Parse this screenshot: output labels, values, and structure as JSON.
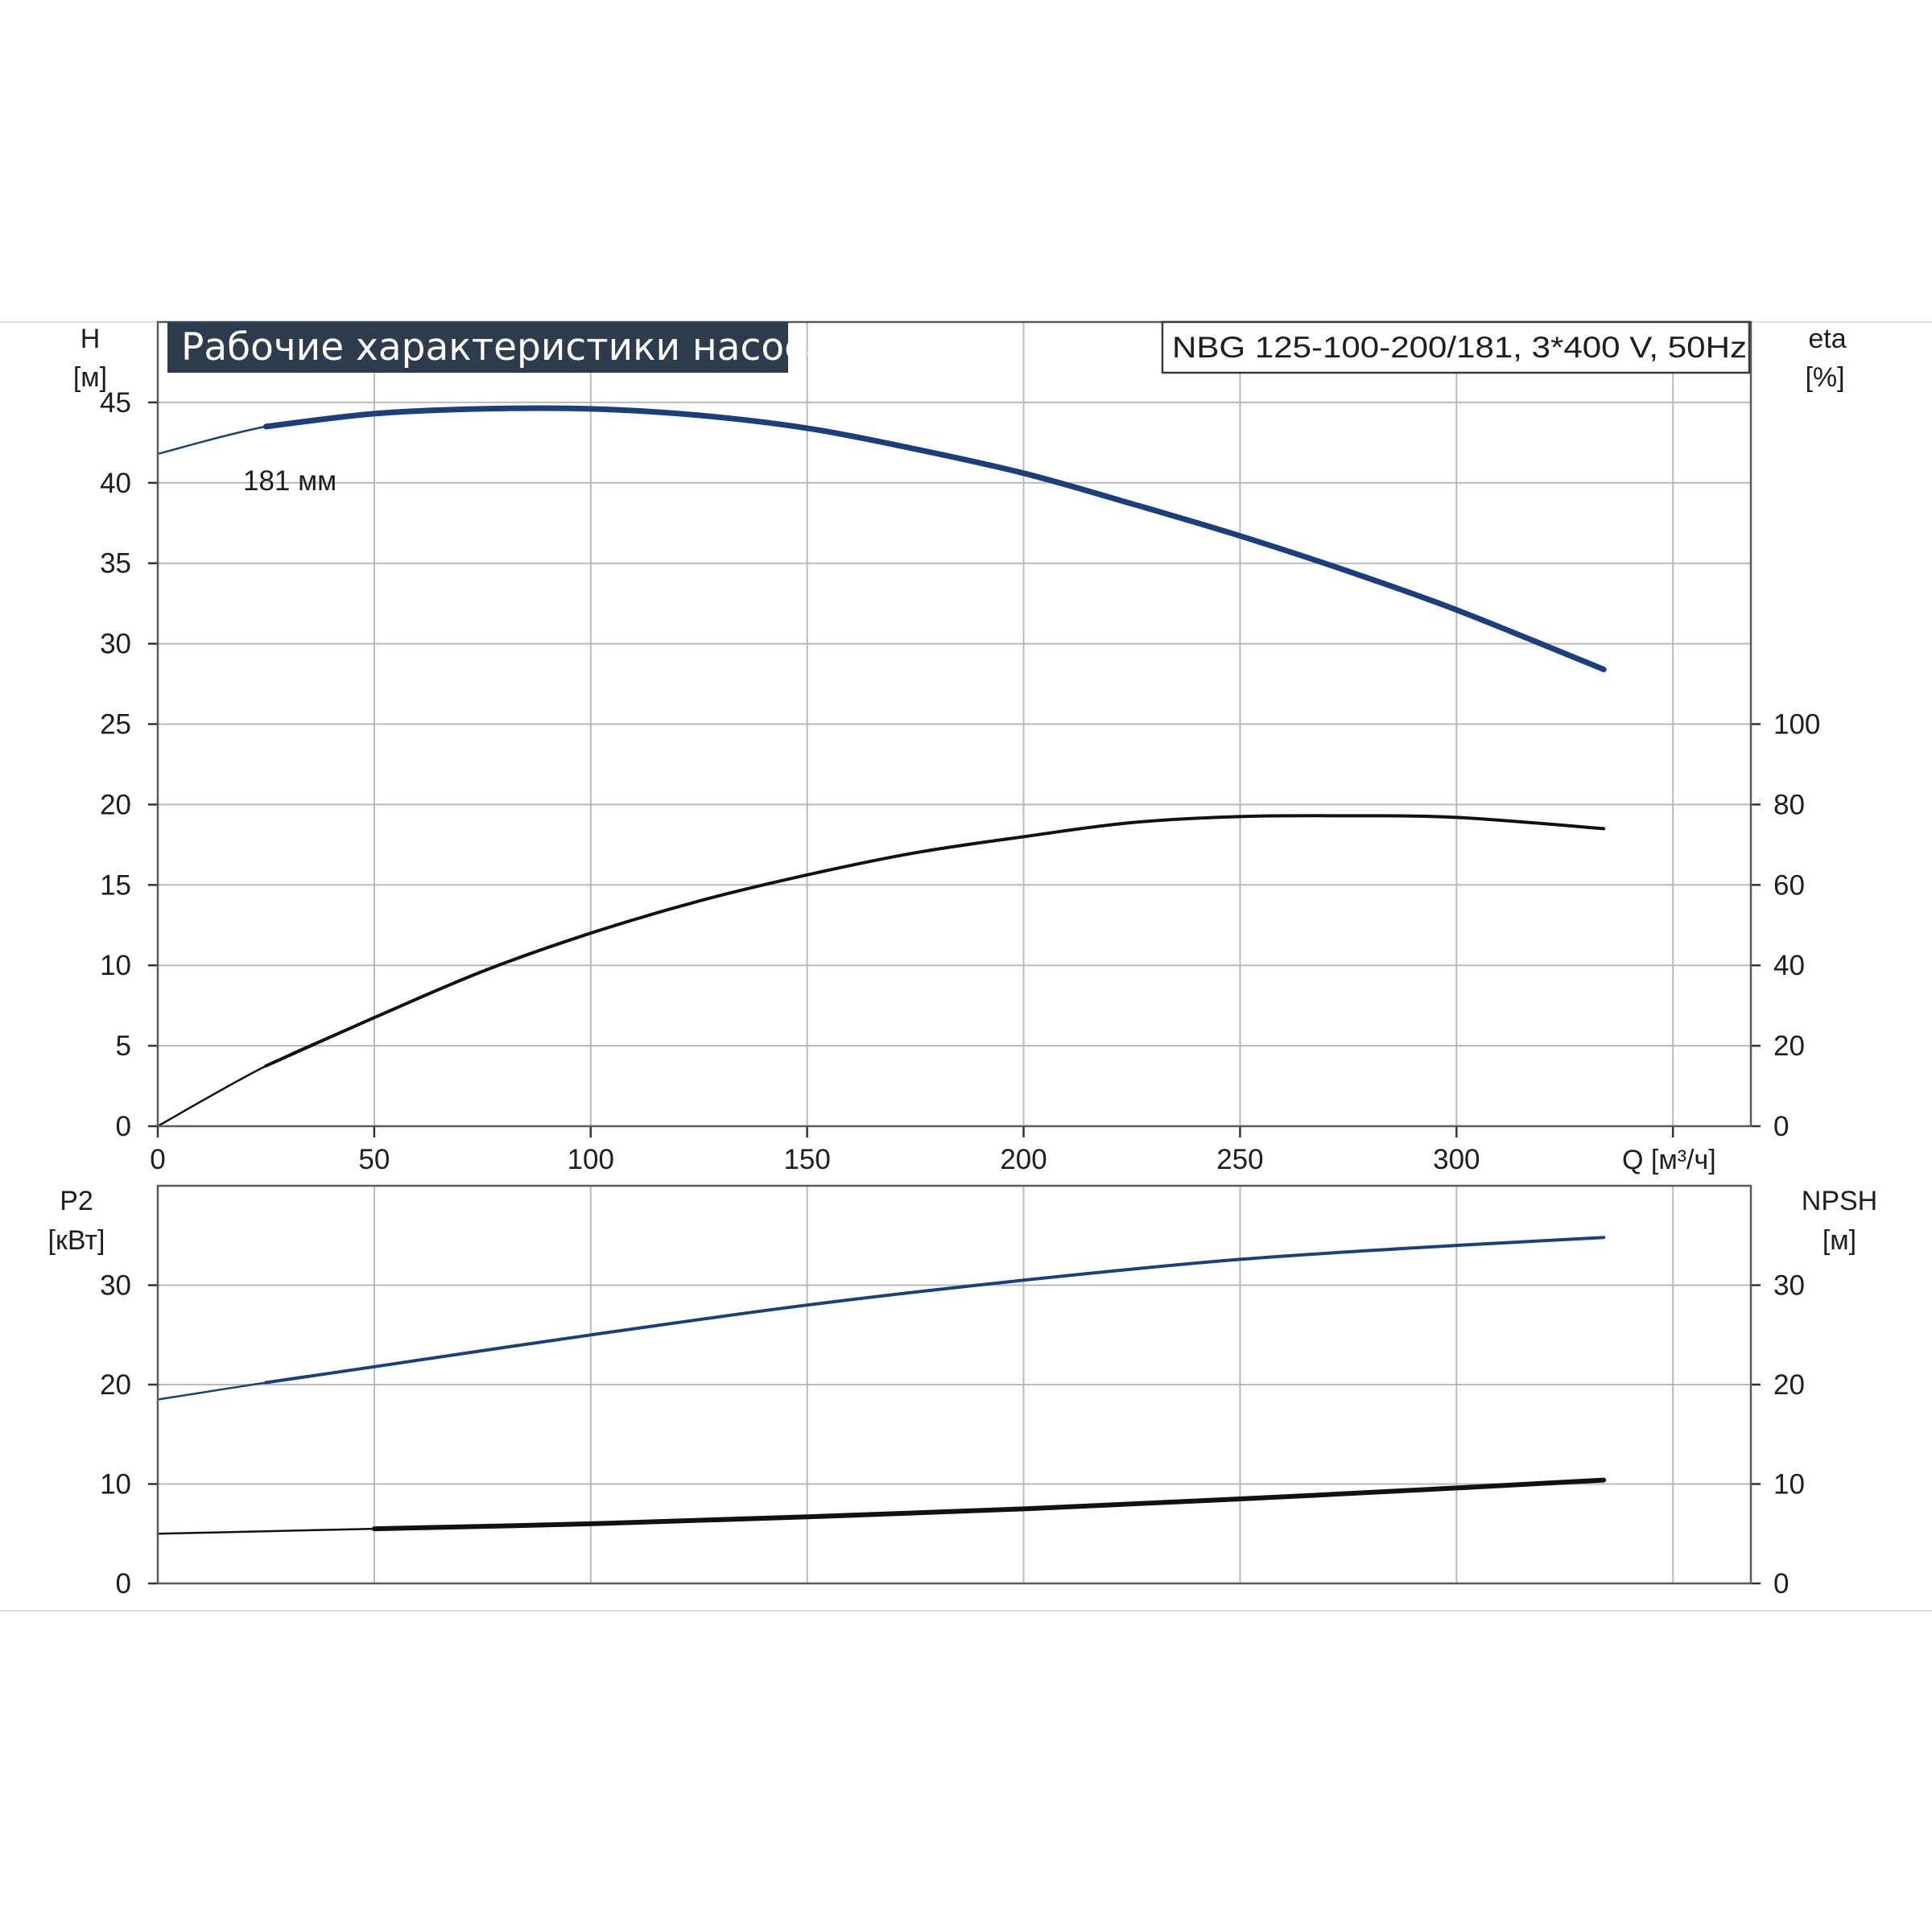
{
  "chart_data": [
    {
      "type": "line",
      "title": "Рабочие характеристики насоса",
      "model_label": "NBG 125-100-200/181, 3*400 V, 50Hz",
      "xlabel": "Q [м³/ч]",
      "xlim": [
        0,
        368
      ],
      "x_ticks": [
        0,
        50,
        100,
        150,
        200,
        250,
        300
      ],
      "ylabel_left": [
        "H",
        "[м]"
      ],
      "ylim_left": [
        0,
        50
      ],
      "y_ticks_left": [
        0,
        5,
        10,
        15,
        20,
        25,
        30,
        35,
        40,
        45
      ],
      "ylabel_right": [
        "eta",
        "[%]"
      ],
      "ylim_right": [
        0,
        200
      ],
      "y_ticks_right": [
        0,
        20,
        40,
        60,
        80,
        100
      ],
      "grid": true,
      "series": [
        {
          "name": "181 мм",
          "axis": "left",
          "color": "#1a3f7a",
          "x": [
            0,
            25,
            50,
            75,
            100,
            125,
            150,
            175,
            200,
            225,
            250,
            275,
            300,
            334
          ],
          "y": [
            41.8,
            43.5,
            44.3,
            44.6,
            44.6,
            44.2,
            43.4,
            42.1,
            40.6,
            38.7,
            36.7,
            34.5,
            32.1,
            28.4
          ]
        },
        {
          "name": "",
          "axis": "right",
          "color": "#111111",
          "x": [
            0,
            25,
            50,
            75,
            100,
            125,
            150,
            175,
            200,
            225,
            250,
            275,
            300,
            334
          ],
          "y": [
            0,
            15,
            27,
            38.5,
            48,
            56,
            62.5,
            68,
            72,
            75.5,
            77,
            77.2,
            76.8,
            74
          ]
        }
      ]
    },
    {
      "type": "line",
      "xlim": [
        0,
        368
      ],
      "ylabel_left": [
        "P2",
        "[кВт]"
      ],
      "ylim_left": [
        0,
        40
      ],
      "y_ticks_left": [
        0,
        10,
        20,
        30
      ],
      "ylabel_right": [
        "NPSH",
        "[м]"
      ],
      "ylim_right": [
        0,
        40
      ],
      "y_ticks_right": [
        0,
        10,
        20,
        30
      ],
      "grid": true,
      "series": [
        {
          "name": "",
          "axis": "left",
          "color": "#1a3f7a",
          "x": [
            0,
            25,
            50,
            100,
            150,
            200,
            250,
            300,
            334
          ],
          "y": [
            18.5,
            20.2,
            21.8,
            25,
            28,
            30.5,
            32.6,
            34,
            34.8
          ]
        },
        {
          "name": "",
          "axis": "right",
          "color": "#111111",
          "x": [
            0,
            50,
            100,
            150,
            200,
            250,
            300,
            334
          ],
          "y": [
            5,
            5.5,
            6,
            6.7,
            7.5,
            8.5,
            9.6,
            10.4
          ]
        }
      ]
    }
  ]
}
